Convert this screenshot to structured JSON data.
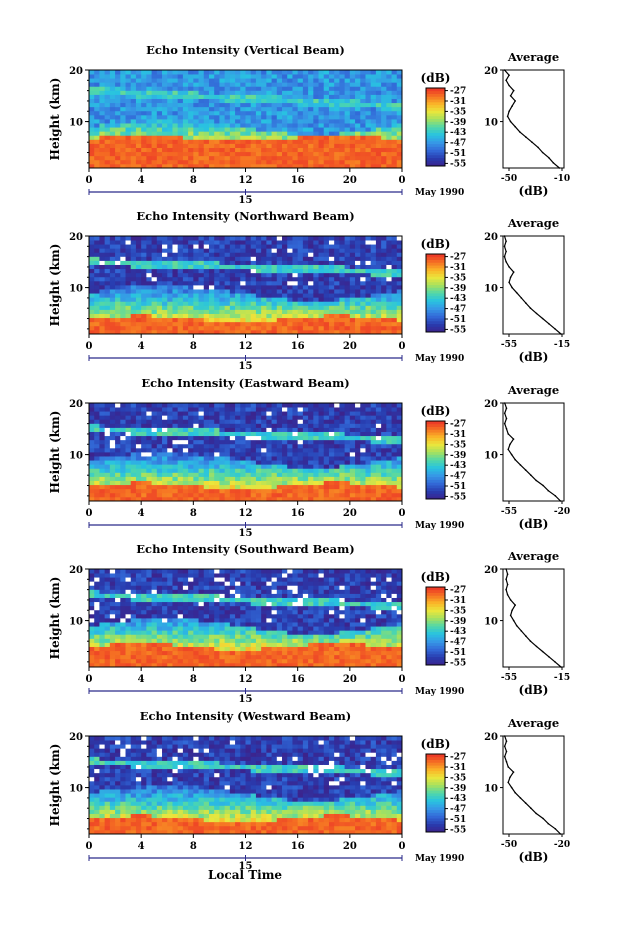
{
  "figure": {
    "xlabel": "Local Time",
    "date_label": "May 1990",
    "date_tick": "15",
    "colorbar_label": "(dB)",
    "colorbar_ticks": [
      "-27",
      "-31",
      "-35",
      "-39",
      "-43",
      "-47",
      "-51",
      "-55"
    ],
    "average_title": "Average",
    "average_xlabel": "(dB)"
  },
  "chart_data": [
    {
      "type": "heatmap",
      "title": "Echo Intensity (Vertical Beam)",
      "ylabel": "Height (km)",
      "xlabel": "Local Time",
      "x_ticks": [
        "0",
        "4",
        "8",
        "12",
        "16",
        "20",
        "0"
      ],
      "y_ticks": [
        "10",
        "20"
      ],
      "xlim": [
        0,
        24
      ],
      "ylim": [
        1,
        20
      ],
      "color_scale_db": [
        -55,
        -27
      ],
      "features": {
        "strong_layer_top_km": 6,
        "tropopause_layer_km": [
          16,
          13
        ]
      },
      "profile": {
        "title": "Average",
        "xlabel": "(dB)",
        "xlim": [
          -50,
          -10
        ],
        "x_ticks": [
          "-50",
          "-10"
        ],
        "y_ticks": [
          "10",
          "20"
        ],
        "height_km": [
          1,
          2,
          3,
          4,
          5,
          6,
          7,
          8,
          9,
          10,
          11,
          12,
          13,
          14,
          15,
          16,
          17,
          18,
          19,
          20
        ],
        "db": [
          -13,
          -17,
          -20,
          -24,
          -27,
          -31,
          -35,
          -39,
          -42,
          -45,
          -47,
          -46,
          -44,
          -42,
          -45,
          -43,
          -46,
          -48,
          -46,
          -49
        ]
      }
    },
    {
      "type": "heatmap",
      "title": "Echo Intensity (Northward Beam)",
      "ylabel": "Height (km)",
      "xlabel": "Local Time",
      "x_ticks": [
        "0",
        "4",
        "8",
        "12",
        "16",
        "20",
        "0"
      ],
      "y_ticks": [
        "10",
        "20"
      ],
      "xlim": [
        0,
        24
      ],
      "ylim": [
        1,
        20
      ],
      "color_scale_db": [
        -55,
        -27
      ],
      "features": {
        "strong_layer_top_km": 4,
        "tropopause_layer_km": [
          15,
          13
        ]
      },
      "profile": {
        "title": "Average",
        "xlabel": "(dB)",
        "xlim": [
          -55,
          -15
        ],
        "x_ticks": [
          "-55",
          "-15"
        ],
        "y_ticks": [
          "10",
          "20"
        ],
        "height_km": [
          1,
          2,
          3,
          4,
          5,
          6,
          7,
          8,
          9,
          10,
          11,
          12,
          13,
          14,
          15,
          16,
          17,
          18,
          19,
          20
        ],
        "db": [
          -17,
          -21,
          -25,
          -29,
          -33,
          -37,
          -40,
          -43,
          -46,
          -49,
          -51,
          -50,
          -48,
          -51,
          -53,
          -54,
          -53,
          -54,
          -53,
          -54
        ]
      }
    },
    {
      "type": "heatmap",
      "title": "Echo Intensity (Eastward Beam)",
      "ylabel": "Height (km)",
      "xlabel": "Local Time",
      "x_ticks": [
        "0",
        "4",
        "8",
        "12",
        "16",
        "20",
        "0"
      ],
      "y_ticks": [
        "10",
        "20"
      ],
      "xlim": [
        0,
        24
      ],
      "ylim": [
        1,
        20
      ],
      "color_scale_db": [
        -55,
        -27
      ],
      "features": {
        "strong_layer_top_km": 4,
        "tropopause_layer_km": [
          15,
          13
        ]
      },
      "profile": {
        "title": "Average",
        "xlabel": "(dB)",
        "xlim": [
          -55,
          -20
        ],
        "x_ticks": [
          "-55",
          "-20"
        ],
        "y_ticks": [
          "10",
          "20"
        ],
        "height_km": [
          1,
          2,
          3,
          4,
          5,
          6,
          7,
          8,
          9,
          10,
          11,
          12,
          13,
          14,
          15,
          16,
          17,
          18,
          19,
          20
        ],
        "db": [
          -22,
          -25,
          -29,
          -32,
          -36,
          -39,
          -42,
          -45,
          -48,
          -50,
          -52,
          -51,
          -49,
          -52,
          -53,
          -54,
          -53,
          -54,
          -53,
          -54
        ]
      }
    },
    {
      "type": "heatmap",
      "title": "Echo Intensity (Southward Beam)",
      "ylabel": "Height (km)",
      "xlabel": "Local Time",
      "x_ticks": [
        "0",
        "4",
        "8",
        "12",
        "16",
        "20",
        "0"
      ],
      "y_ticks": [
        "10",
        "20"
      ],
      "xlim": [
        0,
        24
      ],
      "ylim": [
        1,
        20
      ],
      "color_scale_db": [
        -55,
        -27
      ],
      "features": {
        "strong_layer_top_km": 5,
        "tropopause_layer_km": [
          15,
          13
        ]
      },
      "profile": {
        "title": "Average",
        "xlabel": "(dB)",
        "xlim": [
          -55,
          -15
        ],
        "x_ticks": [
          "-55",
          "-15"
        ],
        "y_ticks": [
          "10",
          "20"
        ],
        "height_km": [
          1,
          2,
          3,
          4,
          5,
          6,
          7,
          8,
          9,
          10,
          11,
          12,
          13,
          14,
          15,
          16,
          17,
          18,
          19,
          20
        ],
        "db": [
          -17,
          -21,
          -25,
          -29,
          -33,
          -37,
          -40,
          -43,
          -46,
          -48,
          -50,
          -49,
          -47,
          -50,
          -52,
          -53,
          -52,
          -53,
          -52,
          -53
        ]
      }
    },
    {
      "type": "heatmap",
      "title": "Echo Intensity (Westward Beam)",
      "ylabel": "Height (km)",
      "xlabel": "Local Time",
      "x_ticks": [
        "0",
        "4",
        "8",
        "12",
        "16",
        "20",
        "0"
      ],
      "y_ticks": [
        "10",
        "20"
      ],
      "xlim": [
        0,
        24
      ],
      "ylim": [
        1,
        20
      ],
      "color_scale_db": [
        -55,
        -27
      ],
      "features": {
        "strong_layer_top_km": 4,
        "tropopause_layer_km": [
          15,
          13
        ]
      },
      "profile": {
        "title": "Average",
        "xlabel": "(dB)",
        "xlim": [
          -55,
          -20
        ],
        "x_ticks": [
          "-50",
          "-20"
        ],
        "y_ticks": [
          "10",
          "20"
        ],
        "height_km": [
          1,
          2,
          3,
          4,
          5,
          6,
          7,
          8,
          9,
          10,
          11,
          12,
          13,
          14,
          15,
          16,
          17,
          18,
          19,
          20
        ],
        "db": [
          -22,
          -25,
          -29,
          -32,
          -36,
          -39,
          -42,
          -45,
          -48,
          -50,
          -52,
          -51,
          -49,
          -52,
          -53,
          -54,
          -53,
          -54,
          -53,
          -54
        ]
      }
    }
  ]
}
